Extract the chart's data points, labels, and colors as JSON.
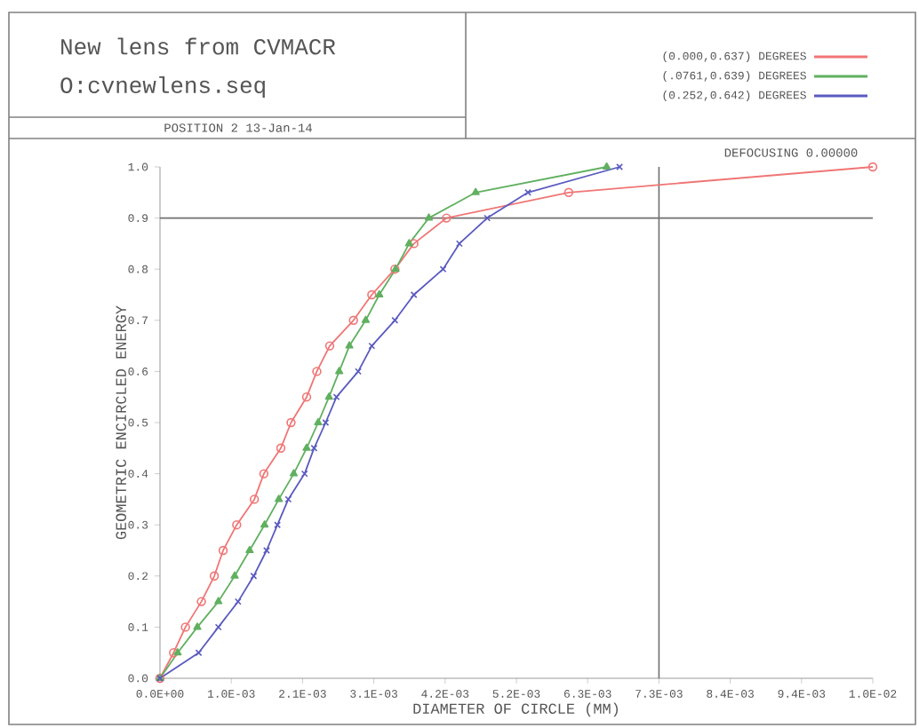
{
  "chart_data": {
    "type": "line",
    "title": "New lens from CVMACR",
    "subtitle": "O:cvnewlens.seq",
    "xlabel": "DIAMETER OF CIRCLE (MM)",
    "ylabel": "GEOMETRIC ENCIRCLED ENERGY",
    "annotations": [
      "POSITION 2   13-Jan-14",
      "DEFOCUSING  0.00000"
    ],
    "xlim": [
      0,
      0.0105
    ],
    "ylim": [
      0,
      1
    ],
    "xticks": [
      {
        "value": 0,
        "label": "0.0E+00"
      },
      {
        "value": 0.00105,
        "label": "1.0E-03"
      },
      {
        "value": 0.0021,
        "label": "2.1E-03"
      },
      {
        "value": 0.00315,
        "label": "3.1E-03"
      },
      {
        "value": 0.0042,
        "label": "4.2E-03"
      },
      {
        "value": 0.00525,
        "label": "5.2E-03"
      },
      {
        "value": 0.0063,
        "label": "6.3E-03"
      },
      {
        "value": 0.00735,
        "label": "7.3E-03"
      },
      {
        "value": 0.0084,
        "label": "8.4E-03"
      },
      {
        "value": 0.00945,
        "label": "9.4E-03"
      },
      {
        "value": 0.0105,
        "label": "1.0E-02"
      }
    ],
    "yticks": [
      {
        "value": 0,
        "label": "0.0"
      },
      0.1,
      0.2,
      0.3,
      0.4,
      0.5,
      0.6,
      0.7,
      0.8,
      0.9,
      {
        "value": 1,
        "label": "1.0"
      }
    ],
    "legend": "top right",
    "ref_lines": [
      {
        "axis": "x",
        "value": 0.00735,
        "color": "#707070"
      },
      {
        "axis": "y",
        "value": 0.9,
        "color": "#707070"
      }
    ],
    "series": [
      {
        "name": "(0.000,0.637) DEGREES",
        "color": "#f07575",
        "marker": "circle",
        "x": [
          0,
          0.0002,
          0.000375,
          0.00061,
          0.0008,
          0.00093,
          0.00113,
          0.00139,
          0.00153,
          0.00178,
          0.00193,
          0.00216,
          0.00231,
          0.0025,
          0.00285,
          0.00312,
          0.00346,
          0.00374,
          0.00422,
          0.00602,
          0.0105
        ],
        "values": [
          0,
          0.05,
          0.1,
          0.15,
          0.2,
          0.25,
          0.3,
          0.35,
          0.4,
          0.45,
          0.5,
          0.55,
          0.6,
          0.65,
          0.7,
          0.75,
          0.8,
          0.85,
          0.9,
          0.95,
          1.0
        ]
      },
      {
        "name": "(.0761,0.639) DEGREES",
        "color": "#60b060",
        "marker": "triangle",
        "x": [
          0,
          0.00026,
          0.00055,
          0.00086,
          0.0011,
          0.00132,
          0.00154,
          0.00175,
          0.00197,
          0.00216,
          0.00233,
          0.00249,
          0.00264,
          0.00279,
          0.00303,
          0.00323,
          0.00347,
          0.00367,
          0.00396,
          0.00465,
          0.00658
        ],
        "values": [
          0,
          0.05,
          0.1,
          0.15,
          0.2,
          0.25,
          0.3,
          0.35,
          0.4,
          0.45,
          0.5,
          0.55,
          0.6,
          0.65,
          0.7,
          0.75,
          0.8,
          0.85,
          0.9,
          0.95,
          1.0
        ]
      },
      {
        "name": "(0.252,0.642) DEGREES",
        "color": "#5a5ac0",
        "marker": "cross",
        "x": [
          0,
          0.00057,
          0.00086,
          0.00115,
          0.00138,
          0.00157,
          0.00173,
          0.00189,
          0.00213,
          0.00227,
          0.00244,
          0.0026,
          0.00292,
          0.00312,
          0.00346,
          0.00374,
          0.00417,
          0.00441,
          0.00482,
          0.00542,
          0.00677
        ],
        "values": [
          0,
          0.05,
          0.1,
          0.15,
          0.2,
          0.25,
          0.3,
          0.35,
          0.4,
          0.45,
          0.5,
          0.55,
          0.6,
          0.65,
          0.7,
          0.75,
          0.8,
          0.85,
          0.9,
          0.95,
          1.0
        ]
      }
    ]
  }
}
